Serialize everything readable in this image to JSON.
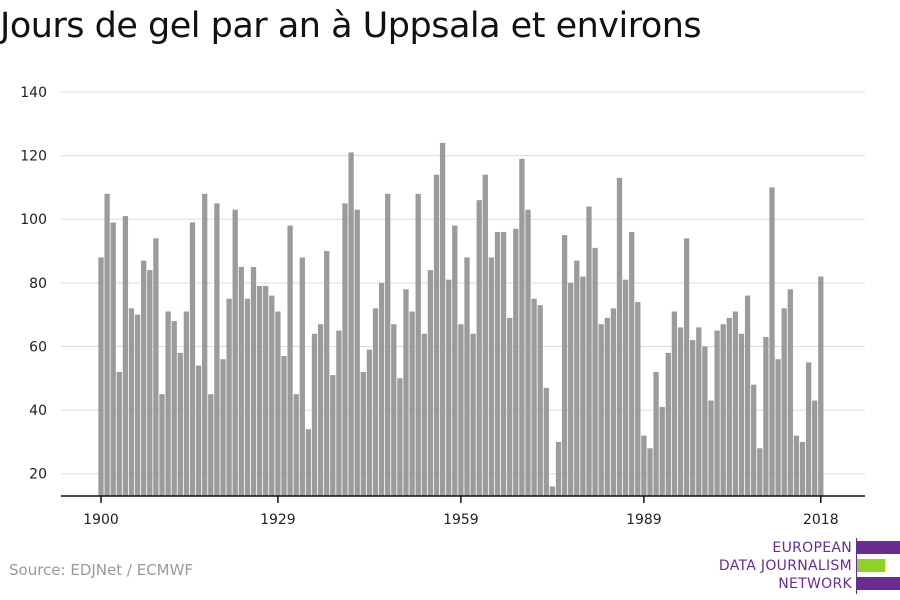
{
  "chart_data": {
    "type": "bar",
    "title": "Jours de gel par an à Uppsala et environs",
    "x_start": 1900,
    "x": [
      1900,
      1901,
      1902,
      1903,
      1904,
      1905,
      1906,
      1907,
      1908,
      1909,
      1910,
      1911,
      1912,
      1913,
      1914,
      1915,
      1916,
      1917,
      1918,
      1919,
      1920,
      1921,
      1922,
      1923,
      1924,
      1925,
      1926,
      1927,
      1928,
      1929,
      1930,
      1931,
      1932,
      1933,
      1934,
      1935,
      1936,
      1937,
      1938,
      1939,
      1940,
      1941,
      1942,
      1943,
      1944,
      1945,
      1946,
      1947,
      1948,
      1949,
      1950,
      1951,
      1952,
      1953,
      1954,
      1955,
      1956,
      1957,
      1958,
      1959,
      1960,
      1961,
      1962,
      1963,
      1964,
      1965,
      1966,
      1967,
      1968,
      1969,
      1970,
      1971,
      1972,
      1973,
      1974,
      1975,
      1976,
      1977,
      1978,
      1979,
      1980,
      1981,
      1982,
      1983,
      1984,
      1985,
      1986,
      1987,
      1988,
      1989,
      1990,
      1991,
      1992,
      1993,
      1994,
      1995,
      1996,
      1997,
      1998,
      1999,
      2000,
      2001,
      2002,
      2003,
      2004,
      2005,
      2006,
      2007,
      2008,
      2009,
      2010,
      2011,
      2012,
      2013,
      2014,
      2015,
      2016,
      2017,
      2018
    ],
    "values": [
      88,
      108,
      99,
      52,
      101,
      72,
      70,
      87,
      84,
      94,
      45,
      71,
      68,
      58,
      71,
      99,
      54,
      108,
      45,
      105,
      56,
      75,
      103,
      85,
      75,
      85,
      79,
      79,
      76,
      71,
      57,
      98,
      45,
      88,
      34,
      64,
      67,
      90,
      51,
      65,
      105,
      121,
      103,
      52,
      59,
      72,
      80,
      108,
      67,
      50,
      78,
      71,
      108,
      64,
      84,
      114,
      124,
      81,
      98,
      67,
      88,
      64,
      106,
      114,
      88,
      96,
      96,
      69,
      97,
      119,
      103,
      75,
      73,
      47,
      16,
      30,
      95,
      80,
      87,
      82,
      104,
      91,
      67,
      69,
      72,
      113,
      81,
      96,
      74,
      32,
      28,
      52,
      41,
      58,
      71,
      66,
      94,
      62,
      66,
      60,
      43,
      65,
      67,
      69,
      71,
      64,
      76,
      48,
      28,
      63,
      110,
      56,
      72,
      78,
      32,
      30,
      55,
      43,
      82
    ],
    "x_ticks": [
      1900,
      1929,
      1959,
      1989,
      2018
    ],
    "y_ticks": [
      20,
      40,
      60,
      80,
      100,
      120,
      140
    ],
    "ylim": [
      13,
      140
    ],
    "bar_color": "#9b9b9b",
    "grid": true
  },
  "footer": {
    "source": "Source: EDJNet / ECMWF",
    "logo_line1": "EUROPEAN",
    "logo_line2": "DATA JOURNALISM",
    "logo_line3": "NETWORK"
  },
  "colors": {
    "logo_purple": "#6a2c91",
    "logo_green": "#8ed12a"
  }
}
